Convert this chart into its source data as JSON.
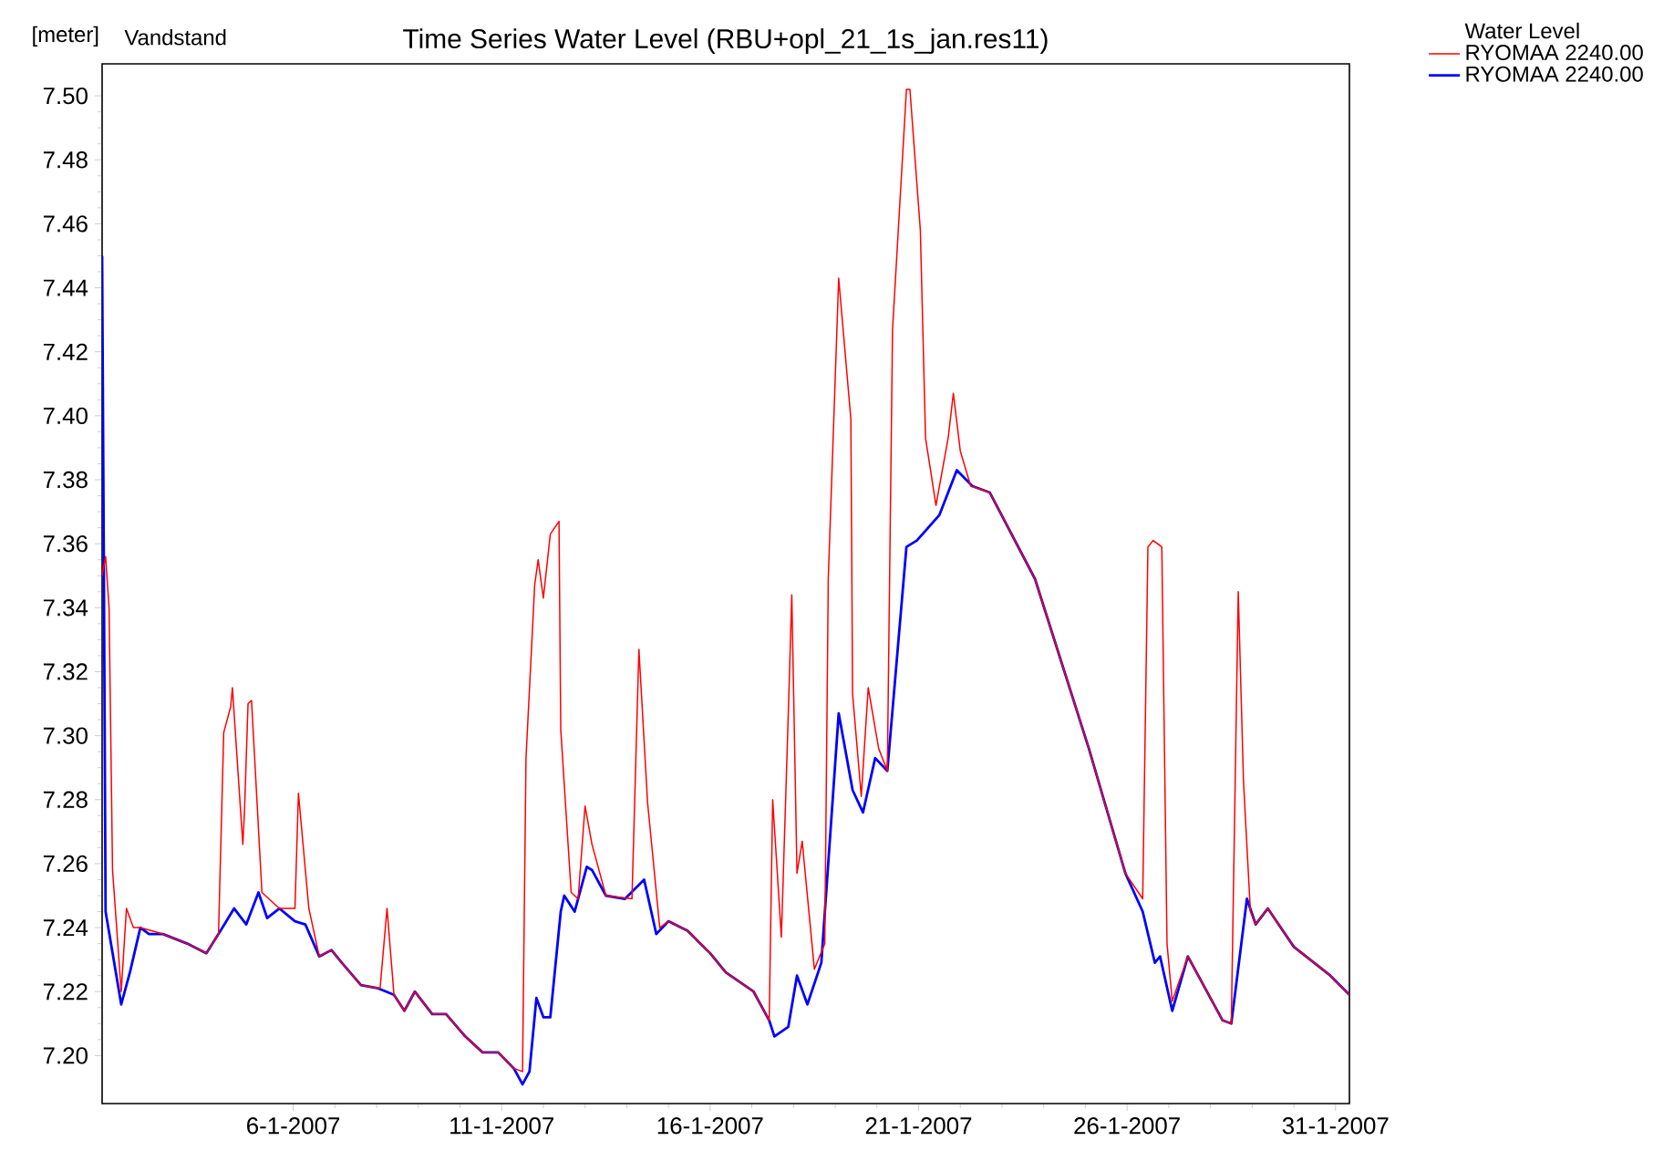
{
  "chart_data": {
    "type": "line",
    "title": "Time Series Water Level (RBU+opl_21_1s_jan.res11)",
    "ylabel": "[meter]",
    "annotations": [
      "Vandstand"
    ],
    "legend_title": "Water Level",
    "legend": "right",
    "xlim": [
      "2007-01-01T10:00",
      "2007-01-31T08:00"
    ],
    "xticks": [
      {
        "value": "2007-01-06",
        "label": "6-1-2007"
      },
      {
        "value": "2007-01-11",
        "label": "11-1-2007"
      },
      {
        "value": "2007-01-16",
        "label": "16-1-2007"
      },
      {
        "value": "2007-01-21",
        "label": "21-1-2007"
      },
      {
        "value": "2007-01-26",
        "label": "26-1-2007"
      },
      {
        "value": "2007-01-31",
        "label": "31-1-2007"
      }
    ],
    "ylim": [
      7.185,
      7.51
    ],
    "yticks": [
      {
        "value": 7.2,
        "label": "7.20"
      },
      {
        "value": 7.22,
        "label": "7.22"
      },
      {
        "value": 7.24,
        "label": "7.24"
      },
      {
        "value": 7.26,
        "label": "7.26"
      },
      {
        "value": 7.28,
        "label": "7.28"
      },
      {
        "value": 7.3,
        "label": "7.30"
      },
      {
        "value": 7.32,
        "label": "7.32"
      },
      {
        "value": 7.34,
        "label": "7.34"
      },
      {
        "value": 7.36,
        "label": "7.36"
      },
      {
        "value": 7.38,
        "label": "7.38"
      },
      {
        "value": 7.4,
        "label": "7.40"
      },
      {
        "value": 7.42,
        "label": "7.42"
      },
      {
        "value": 7.44,
        "label": "7.44"
      },
      {
        "value": 7.46,
        "label": "7.46"
      },
      {
        "value": 7.48,
        "label": "7.48"
      },
      {
        "value": 7.5,
        "label": "7.50"
      }
    ],
    "series": [
      {
        "name": "RYOMAA  2240.00",
        "color": "#ff0000",
        "x": [
          "2007-01-01T10:00",
          "2007-01-01T12:00",
          "2007-01-01T14:00",
          "2007-01-01T16:00",
          "2007-01-01T21:00",
          "2007-01-02T00:00",
          "2007-01-02T04:00",
          "2007-01-02T08:00",
          "2007-01-02T21:00",
          "2007-01-03T11:00",
          "2007-01-03T22:00",
          "2007-01-04T05:00",
          "2007-01-04T08:00",
          "2007-01-04T12:00",
          "2007-01-04T13:00",
          "2007-01-04T19:00",
          "2007-01-04T20:00",
          "2007-01-04T22:00",
          "2007-01-05T00:00",
          "2007-01-05T06:00",
          "2007-01-05T16:00",
          "2007-01-06T01:00",
          "2007-01-06T03:00",
          "2007-01-06T09:00",
          "2007-01-06T15:00",
          "2007-01-06T22:00",
          "2007-01-07T04:00",
          "2007-01-07T15:00",
          "2007-01-08T02:00",
          "2007-01-08T06:00",
          "2007-01-08T10:00",
          "2007-01-08T16:00",
          "2007-01-08T22:00",
          "2007-01-09T08:00",
          "2007-01-09T16:00",
          "2007-01-10T03:00",
          "2007-01-10T13:00",
          "2007-01-10T22:00",
          "2007-01-11T07:00",
          "2007-01-11T12:00",
          "2007-01-11T14:00",
          "2007-01-11T19:00",
          "2007-01-11T21:00",
          "2007-01-12T00:00",
          "2007-01-12T04:00",
          "2007-01-12T09:00",
          "2007-01-12T10:00",
          "2007-01-12T16:00",
          "2007-01-12T20:00",
          "2007-01-13T00:00",
          "2007-01-13T04:00",
          "2007-01-13T12:00",
          "2007-01-14T03:00",
          "2007-01-14T07:00",
          "2007-01-14T12:00",
          "2007-01-14T19:00",
          "2007-01-15T00:00",
          "2007-01-15T11:00",
          "2007-01-16T00:00",
          "2007-01-16T09:00",
          "2007-01-17T01:00",
          "2007-01-17T10:00",
          "2007-01-17T12:00",
          "2007-01-17T17:00",
          "2007-01-17T21:00",
          "2007-01-17T23:00",
          "2007-01-18T02:00",
          "2007-01-18T05:00",
          "2007-01-18T12:00",
          "2007-01-18T18:00",
          "2007-01-18T20:00",
          "2007-01-19T02:00",
          "2007-01-19T09:00",
          "2007-01-19T10:00",
          "2007-01-19T15:00",
          "2007-01-19T19:00",
          "2007-01-20T01:00",
          "2007-01-20T06:00",
          "2007-01-20T09:00",
          "2007-01-20T17:00",
          "2007-01-20T19:00",
          "2007-01-21T01:00",
          "2007-01-21T04:00",
          "2007-01-21T10:00",
          "2007-01-21T17:00",
          "2007-01-21T20:00",
          "2007-01-22T00:00",
          "2007-01-22T06:00",
          "2007-01-22T17:00",
          "2007-01-23T19:00",
          "2007-01-25T02:00",
          "2007-01-25T23:00",
          "2007-01-26T09:00",
          "2007-01-26T12:00",
          "2007-01-26T15:00",
          "2007-01-26T20:00",
          "2007-01-26T23:00",
          "2007-01-27T02:00",
          "2007-01-27T11:00",
          "2007-01-28T07:00",
          "2007-01-28T12:00",
          "2007-01-28T16:00",
          "2007-01-28T19:00",
          "2007-01-28T23:00",
          "2007-01-29T02:00",
          "2007-01-29T09:00",
          "2007-01-30T00:00",
          "2007-01-30T21:00",
          "2007-01-31T08:00"
        ],
        "values": [
          7.35,
          7.356,
          7.34,
          7.258,
          7.22,
          7.246,
          7.24,
          7.24,
          7.238,
          7.235,
          7.232,
          7.238,
          7.301,
          7.309,
          7.315,
          7.266,
          7.277,
          7.31,
          7.311,
          7.251,
          7.246,
          7.246,
          7.282,
          7.246,
          7.231,
          7.233,
          7.229,
          7.222,
          7.221,
          7.246,
          7.219,
          7.214,
          7.22,
          7.213,
          7.213,
          7.206,
          7.201,
          7.201,
          7.196,
          7.195,
          7.293,
          7.347,
          7.355,
          7.343,
          7.363,
          7.367,
          7.302,
          7.251,
          7.249,
          7.278,
          7.266,
          7.25,
          7.249,
          7.327,
          7.279,
          7.24,
          7.242,
          7.239,
          7.232,
          7.226,
          7.22,
          7.211,
          7.28,
          7.237,
          7.307,
          7.344,
          7.257,
          7.267,
          7.227,
          7.235,
          7.349,
          7.443,
          7.399,
          7.313,
          7.281,
          7.315,
          7.296,
          7.289,
          7.427,
          7.502,
          7.502,
          7.458,
          7.393,
          7.372,
          7.393,
          7.407,
          7.389,
          7.378,
          7.376,
          7.349,
          7.296,
          7.257,
          7.249,
          7.359,
          7.361,
          7.359,
          7.235,
          7.217,
          7.231,
          7.211,
          7.21,
          7.345,
          7.286,
          7.245,
          7.241,
          7.246,
          7.234,
          7.225,
          7.219
        ]
      },
      {
        "name": "RYOMAA  2240.00",
        "color": "#0000ff",
        "x": [
          "2007-01-01T10:00",
          "2007-01-01T11:00",
          "2007-01-01T12:00",
          "2007-01-01T21:00",
          "2007-01-02T02:00",
          "2007-01-02T08:00",
          "2007-01-02T13:00",
          "2007-01-02T21:00",
          "2007-01-03T11:00",
          "2007-01-03T22:00",
          "2007-01-04T05:00",
          "2007-01-04T14:00",
          "2007-01-04T21:00",
          "2007-01-05T04:00",
          "2007-01-05T09:00",
          "2007-01-05T16:00",
          "2007-01-06T01:00",
          "2007-01-06T07:00",
          "2007-01-06T15:00",
          "2007-01-06T22:00",
          "2007-01-07T04:00",
          "2007-01-07T15:00",
          "2007-01-08T01:00",
          "2007-01-08T10:00",
          "2007-01-08T16:00",
          "2007-01-08T22:00",
          "2007-01-09T08:00",
          "2007-01-09T16:00",
          "2007-01-10T03:00",
          "2007-01-10T13:00",
          "2007-01-10T22:00",
          "2007-01-11T07:00",
          "2007-01-11T12:00",
          "2007-01-11T16:00",
          "2007-01-11T20:00",
          "2007-01-12T00:00",
          "2007-01-12T04:00",
          "2007-01-12T10:00",
          "2007-01-12T12:00",
          "2007-01-12T18:00",
          "2007-01-13T01:00",
          "2007-01-13T04:00",
          "2007-01-13T12:00",
          "2007-01-13T23:00",
          "2007-01-14T10:00",
          "2007-01-14T17:00",
          "2007-01-15T00:00",
          "2007-01-15T11:00",
          "2007-01-16T00:00",
          "2007-01-16T09:00",
          "2007-01-17T01:00",
          "2007-01-17T10:00",
          "2007-01-17T13:00",
          "2007-01-17T21:00",
          "2007-01-18T02:00",
          "2007-01-18T08:00",
          "2007-01-18T16:00",
          "2007-01-19T02:00",
          "2007-01-19T10:00",
          "2007-01-19T16:00",
          "2007-01-19T23:00",
          "2007-01-20T06:00",
          "2007-01-20T17:00",
          "2007-01-20T23:00",
          "2007-01-21T12:00",
          "2007-01-21T22:00",
          "2007-01-22T07:00",
          "2007-01-22T17:00",
          "2007-01-23T19:00",
          "2007-01-25T02:00",
          "2007-01-25T23:00",
          "2007-01-26T09:00",
          "2007-01-26T16:00",
          "2007-01-26T19:00",
          "2007-01-27T02:00",
          "2007-01-27T11:00",
          "2007-01-28T07:00",
          "2007-01-28T12:00",
          "2007-01-28T21:00",
          "2007-01-29T02:00",
          "2007-01-29T09:00",
          "2007-01-30T00:00",
          "2007-01-30T21:00",
          "2007-01-31T08:00"
        ],
        "values": [
          7.45,
          7.353,
          7.245,
          7.216,
          7.226,
          7.24,
          7.238,
          7.238,
          7.235,
          7.232,
          7.238,
          7.246,
          7.241,
          7.251,
          7.243,
          7.246,
          7.242,
          7.241,
          7.231,
          7.233,
          7.229,
          7.222,
          7.221,
          7.219,
          7.214,
          7.22,
          7.213,
          7.213,
          7.206,
          7.201,
          7.201,
          7.196,
          7.191,
          7.195,
          7.218,
          7.212,
          7.212,
          7.245,
          7.25,
          7.245,
          7.259,
          7.258,
          7.25,
          7.249,
          7.255,
          7.238,
          7.242,
          7.239,
          7.232,
          7.226,
          7.22,
          7.211,
          7.206,
          7.209,
          7.225,
          7.216,
          7.229,
          7.307,
          7.283,
          7.276,
          7.293,
          7.289,
          7.359,
          7.361,
          7.369,
          7.383,
          7.378,
          7.376,
          7.349,
          7.296,
          7.257,
          7.245,
          7.229,
          7.231,
          7.214,
          7.231,
          7.211,
          7.21,
          7.249,
          7.241,
          7.246,
          7.234,
          7.225,
          7.219
        ]
      }
    ]
  }
}
